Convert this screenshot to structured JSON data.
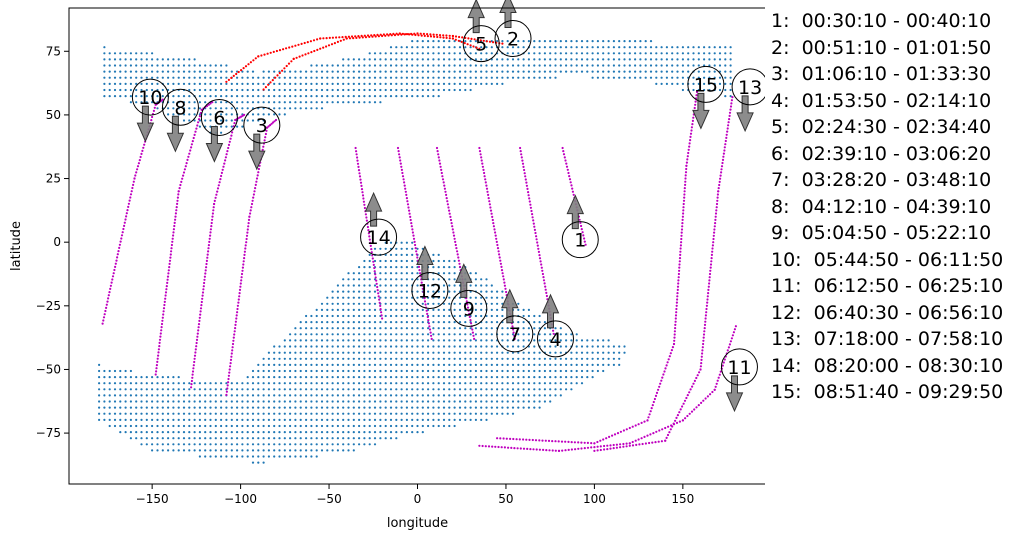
{
  "chart_data": {
    "type": "scatter",
    "xlabel": "longitude",
    "ylabel": "latitude",
    "xlim": [
      -197,
      197
    ],
    "ylim": [
      -95,
      92
    ],
    "xticks": [
      -150,
      -100,
      -50,
      0,
      50,
      100,
      150
    ],
    "yticks": [
      75,
      50,
      25,
      0,
      -25,
      -50,
      -75
    ],
    "colors": {
      "landmass": "#1f77b4",
      "track": "#bf00bf",
      "track_red": "#ff0000",
      "arrow": "#808080"
    },
    "landmass_regions": [
      {
        "name": "north",
        "polygon": [
          [
            -179,
            77
          ],
          [
            -125,
            72
          ],
          [
            -90,
            67
          ],
          [
            -55,
            70
          ],
          [
            -30,
            74
          ],
          [
            -5,
            79
          ],
          [
            40,
            81
          ],
          [
            90,
            81
          ],
          [
            180,
            77
          ],
          [
            180,
            57
          ],
          [
            160,
            58
          ],
          [
            130,
            63
          ],
          [
            90,
            65
          ],
          [
            60,
            64
          ],
          [
            20,
            58
          ],
          [
            -20,
            55
          ],
          [
            -50,
            53
          ],
          [
            -75,
            50
          ],
          [
            -100,
            45
          ],
          [
            -115,
            42
          ],
          [
            -150,
            53
          ],
          [
            -179,
            57
          ]
        ]
      },
      {
        "name": "south",
        "polygon": [
          [
            -80,
            -40
          ],
          [
            -50,
            -20
          ],
          [
            -25,
            -2
          ],
          [
            -10,
            2
          ],
          [
            30,
            -10
          ],
          [
            60,
            -25
          ],
          [
            90,
            -36
          ],
          [
            120,
            -40
          ],
          [
            115,
            -48
          ],
          [
            95,
            -55
          ],
          [
            70,
            -65
          ],
          [
            40,
            -70
          ],
          [
            0,
            -75
          ],
          [
            -40,
            -83
          ],
          [
            -90,
            -87
          ],
          [
            -150,
            -82
          ],
          [
            -180,
            -70
          ],
          [
            -180,
            -48
          ],
          [
            -150,
            -52
          ],
          [
            -100,
            -55
          ]
        ]
      }
    ],
    "series": [
      {
        "label": "1",
        "arrow": "up",
        "time": "1:  00:30:10 - 00:40:10",
        "points": [
          [
            82,
            37
          ],
          [
            95,
            -1
          ]
        ]
      },
      {
        "label": "2",
        "arrow": "up",
        "time": "2:  00:51:10 - 01:01:50",
        "points": [
          [
            -87,
            60
          ],
          [
            -70,
            72
          ],
          [
            -40,
            80
          ],
          [
            0,
            82
          ],
          [
            20,
            81
          ],
          [
            48,
            78
          ]
        ]
      },
      {
        "label": "3",
        "arrow": "down",
        "time": "3:  01:06:10 - 01:33:30",
        "points": [
          [
            -108,
            -60
          ],
          [
            -95,
            10
          ],
          [
            -85,
            45
          ],
          [
            -80,
            48
          ]
        ]
      },
      {
        "label": "4",
        "arrow": "up",
        "time": "4:  01:53:50 - 02:14:10",
        "points": [
          [
            58,
            37
          ],
          [
            77,
            -36
          ]
        ]
      },
      {
        "label": "5",
        "arrow": "up",
        "time": "5:  02:24:30 - 02:34:40",
        "points": [
          [
            -108,
            63
          ],
          [
            -90,
            73
          ],
          [
            -55,
            80
          ],
          [
            -10,
            82
          ],
          [
            20,
            80
          ],
          [
            35,
            76
          ]
        ]
      },
      {
        "label": "6",
        "arrow": "down",
        "time": "6:  02:39:10 - 03:06:20",
        "points": [
          [
            -128,
            -57
          ],
          [
            -115,
            15
          ],
          [
            -103,
            48
          ],
          [
            -98,
            50
          ]
        ]
      },
      {
        "label": "7",
        "arrow": "up",
        "time": "7:  03:28:20 - 03:48:10",
        "points": [
          [
            35,
            37
          ],
          [
            55,
            -38
          ]
        ]
      },
      {
        "label": "8",
        "arrow": "down",
        "time": "8:  04:12:10 - 04:39:10",
        "points": [
          [
            -148,
            -52
          ],
          [
            -135,
            20
          ],
          [
            -122,
            52
          ],
          [
            -116,
            55
          ]
        ]
      },
      {
        "label": "9",
        "arrow": "up",
        "time": "9:  05:04:50 - 05:22:10",
        "points": [
          [
            11,
            37
          ],
          [
            32,
            -38
          ]
        ]
      },
      {
        "label": "10",
        "arrow": "down",
        "time": "10:  05:44:50 - 06:11:50",
        "points": [
          [
            -178,
            -32
          ],
          [
            -160,
            25
          ],
          [
            -148,
            54
          ],
          [
            -144,
            56
          ]
        ]
      },
      {
        "label": "11",
        "arrow": "down",
        "time": "11:  06:12:50 - 06:25:10",
        "points": [
          [
            35,
            -80
          ],
          [
            80,
            -82
          ],
          [
            120,
            -79
          ],
          [
            150,
            -70
          ],
          [
            168,
            -58
          ],
          [
            180,
            -33
          ]
        ]
      },
      {
        "label": "12",
        "arrow": "up",
        "time": "12:  06:40:30 - 06:56:10",
        "points": [
          [
            -11,
            37
          ],
          [
            8,
            -38
          ]
        ]
      },
      {
        "label": "13",
        "arrow": "down",
        "time": "13:  07:18:00 - 07:58:10",
        "points": [
          [
            100,
            -82
          ],
          [
            140,
            -78
          ],
          [
            160,
            -50
          ],
          [
            170,
            20
          ],
          [
            178,
            57
          ]
        ]
      },
      {
        "label": "14",
        "arrow": "up",
        "time": "14:  08:20:00 - 08:30:10",
        "points": [
          [
            -35,
            37
          ],
          [
            -20,
            -30
          ]
        ]
      },
      {
        "label": "15",
        "arrow": "down",
        "time": "15:  08:51:40 - 09:29:50",
        "points": [
          [
            45,
            -77
          ],
          [
            100,
            -79
          ],
          [
            130,
            -70
          ],
          [
            145,
            -40
          ],
          [
            152,
            30
          ],
          [
            158,
            59
          ]
        ]
      }
    ],
    "label_positions_data": {
      "1": [
        92,
        1
      ],
      "2": [
        54,
        80
      ],
      "3": [
        -88,
        46
      ],
      "4": [
        78,
        -38
      ],
      "5": [
        36,
        78
      ],
      "6": [
        -112,
        49
      ],
      "7": [
        55,
        -36
      ],
      "8": [
        -134,
        53
      ],
      "9": [
        29,
        -26
      ],
      "10": [
        -151,
        57
      ],
      "11": [
        182,
        -49
      ],
      "12": [
        7,
        -19
      ],
      "13": [
        188,
        61
      ],
      "14": [
        -22,
        2
      ],
      "15": [
        163,
        62
      ]
    },
    "legend_entries": [
      "1:  00:30:10 - 00:40:10",
      "2:  00:51:10 - 01:01:50",
      "3:  01:06:10 - 01:33:30",
      "4:  01:53:50 - 02:14:10",
      "5:  02:24:30 - 02:34:40",
      "6:  02:39:10 - 03:06:20",
      "7:  03:28:20 - 03:48:10",
      "8:  04:12:10 - 04:39:10",
      "9:  05:04:50 - 05:22:10",
      "10:  05:44:50 - 06:11:50",
      "11:  06:12:50 - 06:25:10",
      "12:  06:40:30 - 06:56:10",
      "13:  07:18:00 - 07:58:10",
      "14:  08:20:00 - 08:30:10",
      "15:  08:51:40 - 09:29:50"
    ]
  }
}
